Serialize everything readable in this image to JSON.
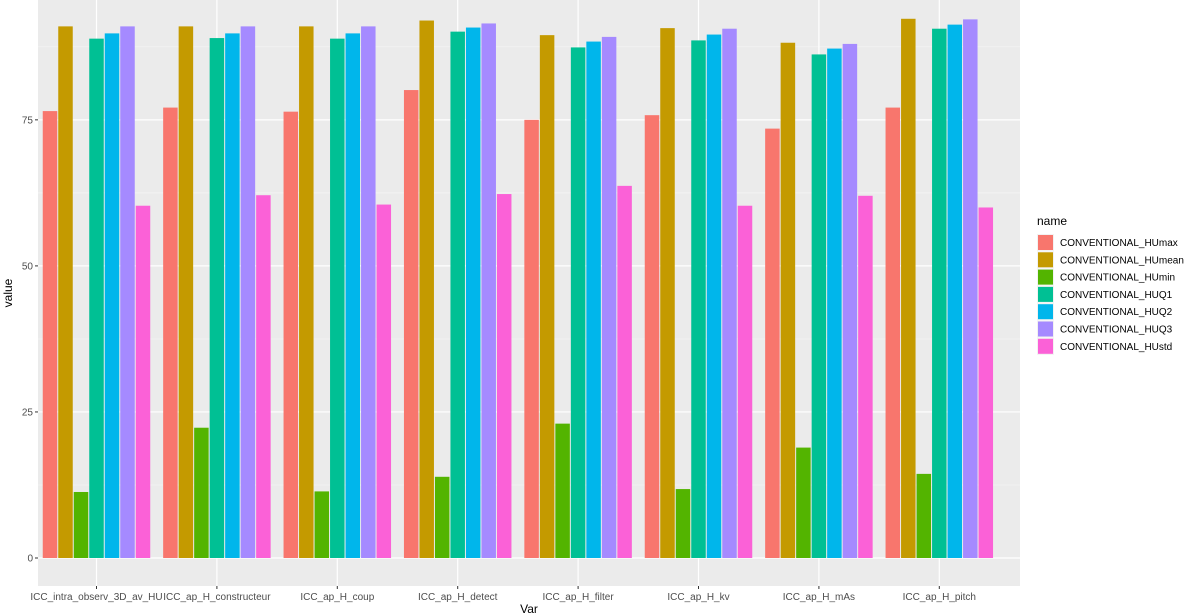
{
  "chart_data": {
    "type": "bar",
    "title": "",
    "xlabel": "Var",
    "ylabel": "value",
    "ylim": [
      0,
      92.5
    ],
    "yticks": [
      0,
      25,
      50,
      75
    ],
    "grid": true,
    "legend": {
      "title": "name",
      "position": "right"
    },
    "categories": [
      "ICC_intra_observ_3D_av_HU",
      "ICC_ap_H_constructeur",
      "ICC_ap_H_coup",
      "ICC_ap_H_detect",
      "ICC_ap_H_filter",
      "ICC_ap_H_kv",
      "ICC_ap_H_mAs",
      "ICC_ap_H_pitch"
    ],
    "series": [
      {
        "name": "CONVENTIONAL_HUmax",
        "color": "#F8766D",
        "values": [
          76.5,
          77.1,
          76.4,
          80.1,
          75.0,
          75.8,
          73.5,
          77.1
        ]
      },
      {
        "name": "CONVENTIONAL_HUmean",
        "color": "#C49A00",
        "values": [
          91.0,
          91.0,
          91.0,
          92.0,
          89.5,
          90.7,
          88.2,
          92.3
        ]
      },
      {
        "name": "CONVENTIONAL_HUmin",
        "color": "#53B400",
        "values": [
          11.3,
          22.3,
          11.4,
          13.9,
          23.0,
          11.8,
          18.9,
          14.4
        ]
      },
      {
        "name": "CONVENTIONAL_HUQ1",
        "color": "#00C094",
        "values": [
          88.9,
          89.0,
          88.9,
          90.1,
          87.4,
          88.6,
          86.2,
          90.6
        ]
      },
      {
        "name": "CONVENTIONAL_HUQ2",
        "color": "#00B6EB",
        "values": [
          89.8,
          89.8,
          89.8,
          90.8,
          88.4,
          89.6,
          87.2,
          91.3
        ]
      },
      {
        "name": "CONVENTIONAL_HUQ3",
        "color": "#A58AFF",
        "values": [
          91.0,
          91.0,
          91.0,
          91.5,
          89.2,
          90.6,
          88.0,
          92.2
        ]
      },
      {
        "name": "CONVENTIONAL_HUstd",
        "color": "#FB61D7",
        "values": [
          60.3,
          62.1,
          60.5,
          62.3,
          63.7,
          60.3,
          62.0,
          60.0
        ]
      }
    ]
  }
}
